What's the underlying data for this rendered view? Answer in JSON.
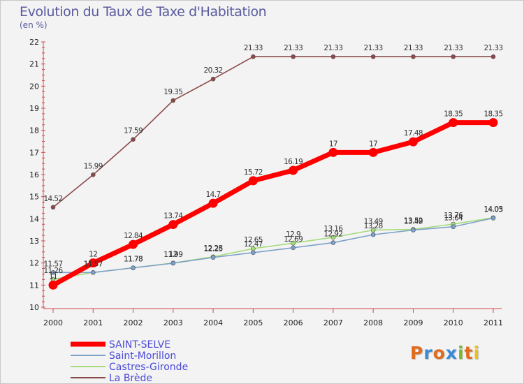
{
  "title": "Evolution du Taux de Taxe d'Habitation",
  "subtitle": "(en %)",
  "logo": {
    "text": "Proxiti",
    "letter_colors": [
      "#e06c1e",
      "#3a8ad8",
      "#e06c1e",
      "#3a8ad8",
      "#7ab82e",
      "#e06c1e",
      "#e6c21c"
    ]
  },
  "chart_data": {
    "type": "line",
    "x": [
      "2000",
      "2001",
      "2002",
      "2003",
      "2004",
      "2005",
      "2006",
      "2007",
      "2008",
      "2009",
      "2010",
      "2011"
    ],
    "ylim": [
      10,
      22
    ],
    "yticks": [
      "10",
      "11",
      "12",
      "13",
      "14",
      "15",
      "16",
      "17",
      "18",
      "19",
      "20",
      "21",
      "22"
    ],
    "grid": false,
    "legend_position": "bottom-left",
    "series": [
      {
        "name": "SAINT-SELVE",
        "color": "#ff0000",
        "emphasis": true,
        "values": [
          11,
          12,
          12.84,
          13.74,
          14.7,
          15.72,
          16.19,
          17,
          17,
          17.48,
          18.35,
          18.35
        ],
        "labels": [
          "11",
          "12",
          "12.84",
          "13.74",
          "14.7",
          "15.72",
          "16.19",
          "17",
          "17",
          "17.48",
          "18.35",
          "18.35"
        ]
      },
      {
        "name": "Saint-Morillon",
        "color": "#7da0c8",
        "values": [
          11.57,
          11.57,
          11.78,
          11.99,
          12.25,
          12.47,
          12.69,
          12.92,
          13.28,
          13.49,
          13.64,
          14.03
        ],
        "labels": [
          "11.57",
          "11.57",
          "11.78",
          "11.99",
          "12.25",
          "12.47",
          "12.69",
          "12.92",
          "13.28",
          "13.49",
          "13.64",
          "14.03"
        ]
      },
      {
        "name": "Castres-Gironde",
        "color": "#a6dc7c",
        "values": [
          11.26,
          11.57,
          11.78,
          12,
          12.28,
          12.65,
          12.9,
          13.16,
          13.49,
          13.52,
          13.76,
          14.05
        ],
        "labels": [
          "11.26",
          "11.57",
          "11.78",
          "12",
          "12.28",
          "12.65",
          "12.9",
          "13.16",
          "13.49",
          "13.52",
          "13.76",
          "14.05"
        ]
      },
      {
        "name": "La Brède",
        "color": "#8b4a4a",
        "values": [
          14.52,
          15.99,
          17.59,
          19.35,
          20.32,
          21.33,
          21.33,
          21.33,
          21.33,
          21.33,
          21.33,
          21.33
        ],
        "labels": [
          "14.52",
          "15.99",
          "17.59",
          "19.35",
          "20.32",
          "21.33",
          "21.33",
          "21.33",
          "21.33",
          "21.33",
          "21.33",
          "21.33"
        ]
      }
    ]
  }
}
